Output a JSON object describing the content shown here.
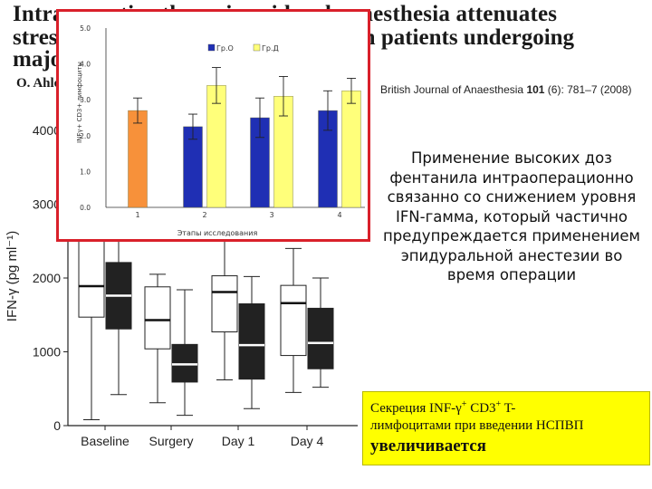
{
  "slide": {
    "title_lines": [
      "Intraoperative thoracic epidural anaesthesia attenuates",
      "stress-induced immunosuppression in patients undergoing",
      "major abdominal surgery"
    ],
    "authors": "O. Ahlers",
    "journal_prefix": "British Journal of Anaesthesia ",
    "journal_volume": "101",
    "journal_rest": " (6): 781–7 (2008)",
    "russian_text": "Применение высоких доз фентанила интраоперационно связанно со снижением уровня IFN-гамма, который частично предупреждается применением эпидуральной анестезии во время операции",
    "yellow_box": {
      "line1_a": "Секреция INF-γ",
      "line1_sup1": "+",
      "line1_b": " CD3",
      "line1_sup2": "+",
      "line1_c": " T-",
      "line2": "лимфоцитами при введении НСПВП",
      "line3": "увеличивается"
    }
  },
  "chart_data": [
    {
      "type": "bar",
      "categories": [
        "1",
        "2",
        "3",
        "4"
      ],
      "series": [
        {
          "name": "Гр.О",
          "color": "#1f2fb4",
          "values": [
            null,
            2.25,
            2.5,
            2.7
          ],
          "err": [
            null,
            0.35,
            0.55,
            0.55
          ]
        },
        {
          "name": "Гр.Д",
          "color": "#ffff7a",
          "values": [
            null,
            3.4,
            3.1,
            3.25
          ],
          "err": [
            null,
            0.5,
            0.55,
            0.35
          ]
        },
        {
          "name": "",
          "color": "#f7913a",
          "values": [
            2.7,
            null,
            null,
            null
          ],
          "err": [
            0.35,
            null,
            null,
            null
          ]
        }
      ],
      "xlabel": "Этапы исследования",
      "ylabel": "INFγ+ CD3+ лимфоциты",
      "ylim": [
        0,
        5
      ],
      "yticks": [
        "0.0",
        "1.0",
        "2.0",
        "3.0",
        "4.0",
        "5.0"
      ],
      "legend_position": "top-center"
    },
    {
      "type": "box",
      "categories": [
        "Baseline",
        "Surgery",
        "Day 1",
        "Day 4"
      ],
      "ylabel": "IFN-γ (pg ml⁻¹)",
      "yticks": [
        "0",
        "1000",
        "2000",
        "3000",
        "4000"
      ],
      "ylim": [
        0,
        4500
      ],
      "series": [
        {
          "name": "",
          "fill": "#ffffff",
          "boxes": [
            {
              "min": 80,
              "q1": 1470,
              "median": 1890,
              "q3": 2600,
              "max": 3600
            },
            {
              "min": 310,
              "q1": 1040,
              "median": 1430,
              "q3": 1880,
              "max": 2050
            },
            {
              "min": 620,
              "q1": 1270,
              "median": 1810,
              "q3": 2030,
              "max": 2900
            },
            {
              "min": 450,
              "q1": 950,
              "median": 1660,
              "q3": 1900,
              "max": 2400
            }
          ]
        },
        {
          "name": "",
          "fill": "#222222",
          "boxes": [
            {
              "min": 420,
              "q1": 1310,
              "median": 1760,
              "q3": 2210,
              "max": 3000
            },
            {
              "min": 140,
              "q1": 590,
              "median": 830,
              "q3": 1100,
              "max": 1840
            },
            {
              "min": 230,
              "q1": 630,
              "median": 1090,
              "q3": 1650,
              "max": 2020
            },
            {
              "min": 520,
              "q1": 770,
              "median": 1120,
              "q3": 1590,
              "max": 2000
            }
          ]
        }
      ]
    }
  ]
}
